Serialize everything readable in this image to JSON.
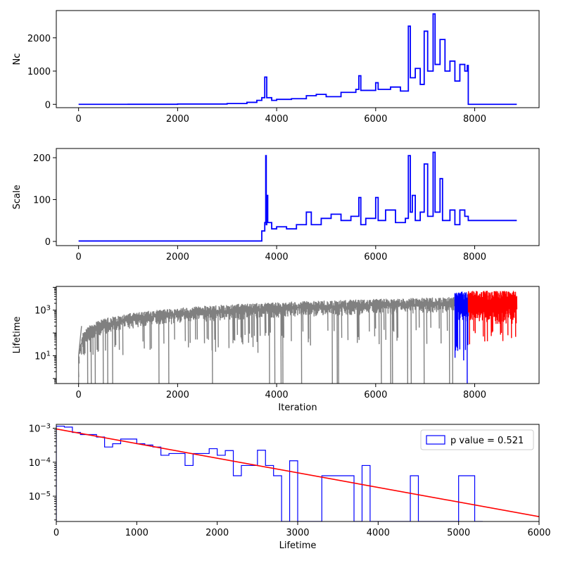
{
  "chart_data": [
    {
      "type": "line",
      "ylabel": "Nc",
      "xlim": [
        -450,
        9300
      ],
      "ylim": [
        -100,
        2820
      ],
      "xticks": [
        0,
        2000,
        4000,
        6000,
        8000
      ],
      "yticks": [
        0,
        1000,
        2000
      ],
      "series": [
        {
          "color": "#0000ff",
          "points": [
            [
              0,
              0
            ],
            [
              1000,
              2
            ],
            [
              2000,
              10
            ],
            [
              3000,
              25
            ],
            [
              3400,
              60
            ],
            [
              3600,
              120
            ],
            [
              3700,
              200
            ],
            [
              3760,
              820
            ],
            [
              3800,
              200
            ],
            [
              3900,
              120
            ],
            [
              4000,
              150
            ],
            [
              4300,
              170
            ],
            [
              4600,
              260
            ],
            [
              4800,
              300
            ],
            [
              5000,
              230
            ],
            [
              5300,
              360
            ],
            [
              5600,
              450
            ],
            [
              5660,
              860
            ],
            [
              5700,
              420
            ],
            [
              6000,
              650
            ],
            [
              6050,
              450
            ],
            [
              6300,
              520
            ],
            [
              6500,
              400
            ],
            [
              6660,
              2350
            ],
            [
              6700,
              800
            ],
            [
              6800,
              1080
            ],
            [
              6900,
              600
            ],
            [
              6980,
              2200
            ],
            [
              7050,
              1000
            ],
            [
              7160,
              2720
            ],
            [
              7200,
              1200
            ],
            [
              7300,
              1950
            ],
            [
              7400,
              1000
            ],
            [
              7500,
              1300
            ],
            [
              7600,
              700
            ],
            [
              7700,
              1200
            ],
            [
              7800,
              1000
            ],
            [
              7850,
              1170
            ],
            [
              7870,
              0
            ],
            [
              8850,
              0
            ]
          ]
        }
      ]
    },
    {
      "type": "line",
      "ylabel": "Scale",
      "xlim": [
        -450,
        9300
      ],
      "ylim": [
        -10,
        222
      ],
      "xticks": [
        0,
        2000,
        4000,
        6000,
        8000
      ],
      "yticks": [
        0,
        100,
        200
      ],
      "series": [
        {
          "color": "#0000ff",
          "points": [
            [
              0,
              1
            ],
            [
              3600,
              1
            ],
            [
              3700,
              25
            ],
            [
              3760,
              45
            ],
            [
              3780,
              205
            ],
            [
              3790,
              40
            ],
            [
              3800,
              110
            ],
            [
              3820,
              45
            ],
            [
              3900,
              30
            ],
            [
              4000,
              35
            ],
            [
              4200,
              30
            ],
            [
              4400,
              40
            ],
            [
              4600,
              70
            ],
            [
              4700,
              40
            ],
            [
              4900,
              55
            ],
            [
              5100,
              65
            ],
            [
              5300,
              50
            ],
            [
              5500,
              60
            ],
            [
              5660,
              105
            ],
            [
              5700,
              40
            ],
            [
              5800,
              55
            ],
            [
              6000,
              105
            ],
            [
              6050,
              50
            ],
            [
              6200,
              75
            ],
            [
              6400,
              45
            ],
            [
              6600,
              55
            ],
            [
              6660,
              205
            ],
            [
              6700,
              70
            ],
            [
              6740,
              110
            ],
            [
              6800,
              50
            ],
            [
              6900,
              70
            ],
            [
              6980,
              185
            ],
            [
              7050,
              60
            ],
            [
              7160,
              213
            ],
            [
              7200,
              70
            ],
            [
              7300,
              150
            ],
            [
              7350,
              50
            ],
            [
              7500,
              75
            ],
            [
              7600,
              40
            ],
            [
              7700,
              75
            ],
            [
              7800,
              60
            ],
            [
              7870,
              50
            ],
            [
              8850,
              50
            ]
          ]
        }
      ]
    },
    {
      "type": "line",
      "xlabel": "Iteration",
      "ylabel": "Lifetime",
      "yscale": "log",
      "xlim": [
        -450,
        9300
      ],
      "ylim": [
        0.6,
        11000
      ],
      "xticks": [
        0,
        2000,
        4000,
        6000,
        8000
      ],
      "yticks": [
        10,
        1000
      ],
      "ytick_labels": [
        "10^1",
        "10^3"
      ],
      "series": [
        {
          "color": "#808080",
          "x_range": [
            0,
            7600
          ],
          "envelope_max": "approx 3000-4000 rising from 0",
          "min": 1
        },
        {
          "color": "#0000ff",
          "x_range": [
            7600,
            7870
          ]
        },
        {
          "color": "#ff0000",
          "x_range": [
            7870,
            8850
          ]
        }
      ]
    },
    {
      "type": "area",
      "xlabel": "Lifetime",
      "yscale": "log",
      "xlim": [
        0,
        6000
      ],
      "ylim": [
        1.8e-06,
        0.0013
      ],
      "xticks": [
        0,
        1000,
        2000,
        3000,
        4000,
        5000,
        6000
      ],
      "yticks": [
        1e-05,
        0.0001,
        0.001
      ],
      "ytick_labels": [
        "10^-5",
        "10^-4",
        "10^-3"
      ],
      "legend": {
        "label": "p value = 0.521",
        "position": "top-right"
      },
      "histogram": {
        "color": "#0000ff",
        "bin_width": 100,
        "bins": [
          [
            0,
            0.00115
          ],
          [
            100,
            0.00108
          ],
          [
            200,
            0.00075
          ],
          [
            300,
            0.00065
          ],
          [
            400,
            0.00065
          ],
          [
            500,
            0.00055
          ],
          [
            600,
            0.00028
          ],
          [
            700,
            0.00035
          ],
          [
            800,
            0.00048
          ],
          [
            900,
            0.00048
          ],
          [
            1000,
            0.00035
          ],
          [
            1100,
            0.00032
          ],
          [
            1200,
            0.00028
          ],
          [
            1300,
            0.00016
          ],
          [
            1400,
            0.00018
          ],
          [
            1500,
            0.00018
          ],
          [
            1600,
            8e-05
          ],
          [
            1700,
            0.00018
          ],
          [
            1800,
            0.00018
          ],
          [
            1900,
            0.00025
          ],
          [
            2000,
            0.00016
          ],
          [
            2100,
            0.00022
          ],
          [
            2200,
            4e-05
          ],
          [
            2300,
            8e-05
          ],
          [
            2400,
            8e-05
          ],
          [
            2500,
            0.000225
          ],
          [
            2600,
            8e-05
          ],
          [
            2700,
            4e-05
          ],
          [
            2800,
            1.8e-06
          ],
          [
            2900,
            0.00011
          ],
          [
            3000,
            1.8e-06
          ],
          [
            3100,
            1.8e-06
          ],
          [
            3200,
            1.8e-06
          ],
          [
            3300,
            4e-05
          ],
          [
            3400,
            4e-05
          ],
          [
            3500,
            4e-05
          ],
          [
            3600,
            4e-05
          ],
          [
            3700,
            1.8e-06
          ],
          [
            3800,
            8e-05
          ],
          [
            3900,
            1.8e-06
          ],
          [
            4000,
            1.8e-06
          ],
          [
            4100,
            1.8e-06
          ],
          [
            4200,
            1.8e-06
          ],
          [
            4300,
            1.8e-06
          ],
          [
            4400,
            4e-05
          ],
          [
            4500,
            1.8e-06
          ],
          [
            4600,
            1.8e-06
          ],
          [
            4700,
            1.8e-06
          ],
          [
            4800,
            1.8e-06
          ],
          [
            4900,
            1.8e-06
          ],
          [
            5000,
            4e-05
          ],
          [
            5100,
            4e-05
          ],
          [
            5200,
            1.8e-06
          ]
        ]
      },
      "fit_line": {
        "color": "#ff0000",
        "points": [
          [
            0,
            0.00095
          ],
          [
            6000,
            2.5e-06
          ]
        ]
      }
    }
  ],
  "colors": {
    "blue": "#0000ff",
    "red": "#ff0000",
    "gray": "#808080"
  }
}
